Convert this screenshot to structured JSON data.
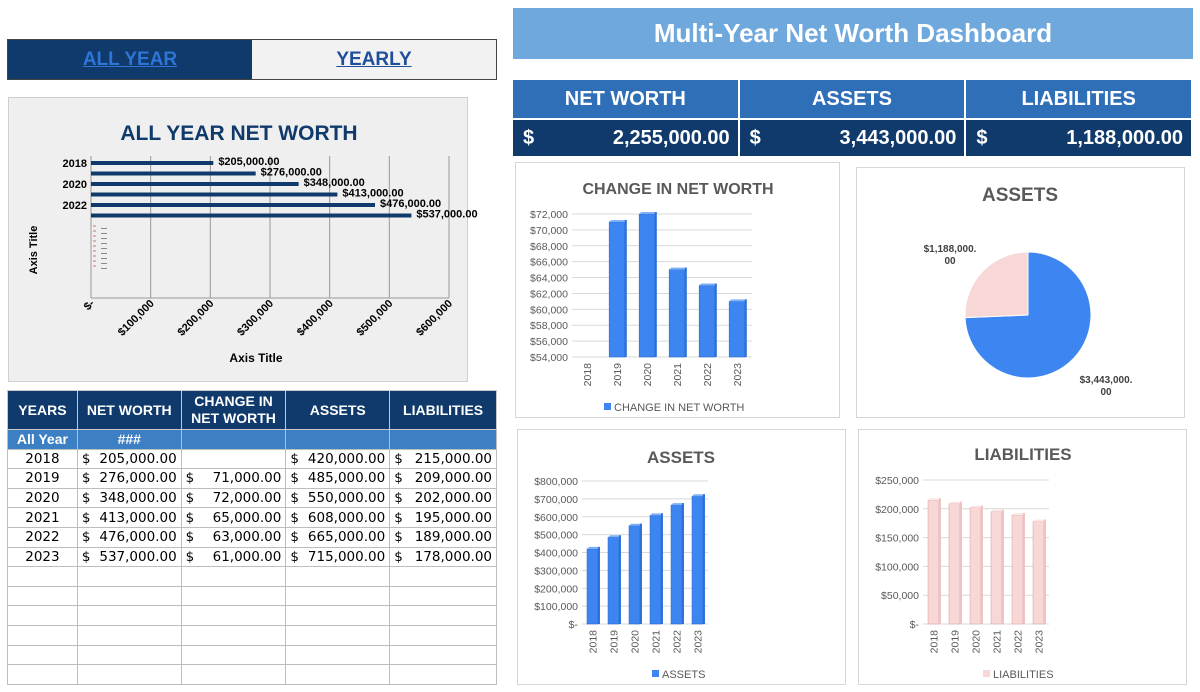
{
  "tabs": {
    "all_year": "ALL YEAR",
    "yearly": "YEARLY"
  },
  "left_chart": {
    "title": "ALL YEAR NET WORTH",
    "y_axis_title": "Axis Title",
    "x_axis_title": "Axis Title",
    "year_labels": [
      "2018",
      "2020",
      "2022"
    ],
    "x_ticks": [
      "$-",
      "$100,000",
      "$200,000",
      "$300,000",
      "$400,000",
      "$500,000",
      "$600,000"
    ],
    "bar_color": "#0f3a6b"
  },
  "table": {
    "headers": [
      "YEARS",
      "NET WORTH",
      "CHANGE IN NET WORTH",
      "ASSETS",
      "LIABILITIES"
    ],
    "all_year_row": [
      "All Year",
      "###",
      "",
      "",
      ""
    ],
    "rows": [
      {
        "year": "2018",
        "net_worth": "205,000.00",
        "change": "",
        "assets": "420,000.00",
        "liabilities": "215,000.00"
      },
      {
        "year": "2019",
        "net_worth": "276,000.00",
        "change": "71,000.00",
        "assets": "485,000.00",
        "liabilities": "209,000.00"
      },
      {
        "year": "2020",
        "net_worth": "348,000.00",
        "change": "72,000.00",
        "assets": "550,000.00",
        "liabilities": "202,000.00"
      },
      {
        "year": "2021",
        "net_worth": "413,000.00",
        "change": "65,000.00",
        "assets": "608,000.00",
        "liabilities": "195,000.00"
      },
      {
        "year": "2022",
        "net_worth": "476,000.00",
        "change": "63,000.00",
        "assets": "665,000.00",
        "liabilities": "189,000.00"
      },
      {
        "year": "2023",
        "net_worth": "537,000.00",
        "change": "61,000.00",
        "assets": "715,000.00",
        "liabilities": "178,000.00"
      }
    ],
    "currency_symbol": "$",
    "empty_rows": 6
  },
  "dashboard": {
    "title": "Multi-Year Net Worth Dashboard",
    "kpis": [
      {
        "label": "NET WORTH",
        "currency": "$",
        "value": "2,255,000.00"
      },
      {
        "label": "ASSETS",
        "currency": "$",
        "value": "3,443,000.00"
      },
      {
        "label": "LIABILITIES",
        "currency": "$",
        "value": "1,188,000.00"
      }
    ]
  },
  "chart_data": [
    {
      "id": "all-year-net-worth",
      "type": "bar",
      "orientation": "horizontal",
      "title": "ALL YEAR NET WORTH",
      "xlabel": "Axis Title",
      "ylabel": "Axis Title",
      "categories": [
        "2018",
        "2019",
        "2020",
        "2021",
        "2022",
        "2023"
      ],
      "values": [
        205000,
        276000,
        348000,
        413000,
        476000,
        537000
      ],
      "data_labels": [
        "$205,000.00",
        "$276,000.00",
        "$348,000.00",
        "$413,000.00",
        "$476,000.00",
        "$537,000.00"
      ],
      "xlim": [
        0,
        600000
      ],
      "grid": true
    },
    {
      "id": "change-in-net-worth",
      "type": "bar",
      "title": "CHANGE IN NET WORTH",
      "categories": [
        "2018",
        "2019",
        "2020",
        "2021",
        "2022",
        "2023"
      ],
      "series": [
        {
          "name": "CHANGE IN NET WORTH",
          "values": [
            null,
            71000,
            72000,
            65000,
            63000,
            61000
          ],
          "color": "#3d85f0"
        }
      ],
      "y_ticks": [
        "$54,000",
        "$56,000",
        "$58,000",
        "$60,000",
        "$62,000",
        "$64,000",
        "$66,000",
        "$68,000",
        "$70,000",
        "$72,000"
      ],
      "ylim": [
        54000,
        72000
      ],
      "legend": "bottom",
      "grid": true
    },
    {
      "id": "assets-pie",
      "type": "pie",
      "title": "ASSETS",
      "slices": [
        {
          "label": "$3,443,000.00",
          "value": 3443000,
          "color": "#3d85f0"
        },
        {
          "label": "$1,188,000.00",
          "value": 1188000,
          "color": "#f8d7d7"
        }
      ]
    },
    {
      "id": "assets-bar",
      "type": "bar",
      "title": "ASSETS",
      "categories": [
        "2018",
        "2019",
        "2020",
        "2021",
        "2022",
        "2023"
      ],
      "series": [
        {
          "name": "ASSETS",
          "values": [
            420000,
            485000,
            550000,
            608000,
            665000,
            715000
          ],
          "color": "#3d85f0"
        }
      ],
      "y_ticks": [
        "$-",
        "$100,000",
        "$200,000",
        "$300,000",
        "$400,000",
        "$500,000",
        "$600,000",
        "$700,000",
        "$800,000"
      ],
      "ylim": [
        0,
        800000
      ],
      "legend": "bottom",
      "grid": true
    },
    {
      "id": "liabilities-bar",
      "type": "bar",
      "title": "LIABILITIES",
      "categories": [
        "2018",
        "2019",
        "2020",
        "2021",
        "2022",
        "2023"
      ],
      "series": [
        {
          "name": "LIABILITIES",
          "values": [
            215000,
            209000,
            202000,
            195000,
            189000,
            178000
          ],
          "color": "#f8d7d7"
        }
      ],
      "y_ticks": [
        "$-",
        "$50,000",
        "$100,000",
        "$150,000",
        "$200,000",
        "$250,000"
      ],
      "ylim": [
        0,
        250000
      ],
      "legend": "bottom",
      "grid": true
    }
  ]
}
